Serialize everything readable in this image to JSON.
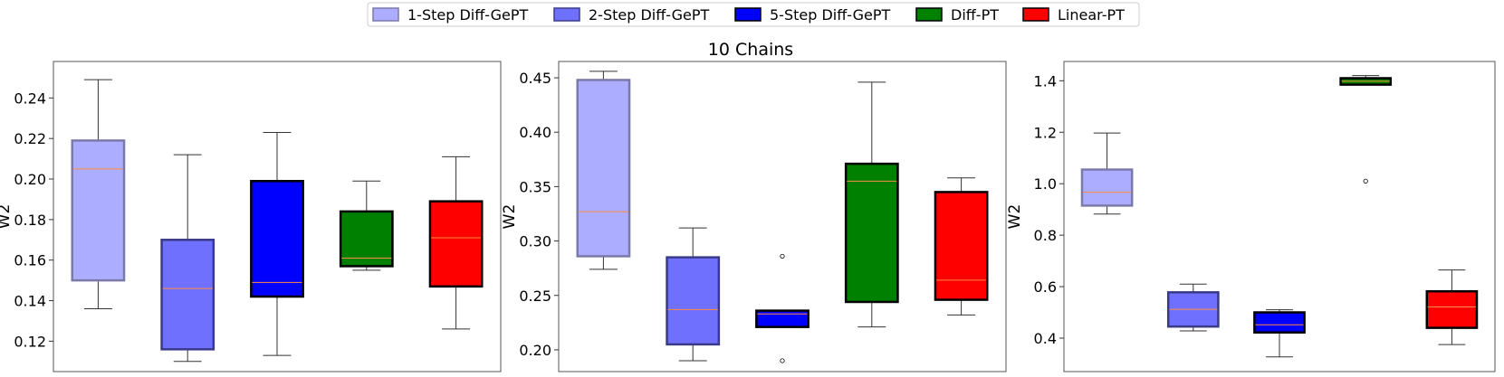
{
  "suptitle": "10 Chains",
  "legend": {
    "position": "top-center",
    "entries": [
      {
        "label": "1-Step Diff-GePT",
        "color": "#adadff",
        "edge": "#7a7aaa"
      },
      {
        "label": "2-Step Diff-GePT",
        "color": "#7070ff",
        "edge": "#3a3a88"
      },
      {
        "label": "5-Step Diff-GePT",
        "color": "#0000ff",
        "edge": "#000000"
      },
      {
        "label": "Diff-PT",
        "color": "#008000",
        "edge": "#000000"
      },
      {
        "label": "Linear-PT",
        "color": "#ff0000",
        "edge": "#000000"
      }
    ]
  },
  "chart_data": [
    {
      "type": "box",
      "title": "",
      "xlabel": "",
      "ylabel": "W2",
      "ylim": [
        0.105,
        0.258
      ],
      "yticks": [
        0.12,
        0.14,
        0.16,
        0.18,
        0.2,
        0.22,
        0.24
      ],
      "ytick_labels": [
        "0.12",
        "0.14",
        "0.16",
        "0.18",
        "0.20",
        "0.22",
        "0.24"
      ],
      "grid": false,
      "boxes": [
        {
          "series": "1-Step Diff-GePT",
          "whislo": 0.136,
          "q1": 0.15,
          "med": 0.205,
          "q3": 0.219,
          "whishi": 0.249,
          "fliers": []
        },
        {
          "series": "2-Step Diff-GePT",
          "whislo": 0.11,
          "q1": 0.116,
          "med": 0.146,
          "q3": 0.17,
          "whishi": 0.212,
          "fliers": []
        },
        {
          "series": "5-Step Diff-GePT",
          "whislo": 0.113,
          "q1": 0.142,
          "med": 0.149,
          "q3": 0.199,
          "whishi": 0.223,
          "fliers": []
        },
        {
          "series": "Diff-PT",
          "whislo": 0.155,
          "q1": 0.157,
          "med": 0.161,
          "q3": 0.184,
          "whishi": 0.199,
          "fliers": []
        },
        {
          "series": "Linear-PT",
          "whislo": 0.126,
          "q1": 0.147,
          "med": 0.171,
          "q3": 0.189,
          "whishi": 0.211,
          "fliers": []
        }
      ]
    },
    {
      "type": "box",
      "title": "",
      "xlabel": "",
      "ylabel": "W2",
      "ylim": [
        0.18,
        0.465
      ],
      "yticks": [
        0.2,
        0.25,
        0.3,
        0.35,
        0.4,
        0.45
      ],
      "ytick_labels": [
        "0.20",
        "0.25",
        "0.30",
        "0.35",
        "0.40",
        "0.45"
      ],
      "grid": false,
      "boxes": [
        {
          "series": "1-Step Diff-GePT",
          "whislo": 0.274,
          "q1": 0.286,
          "med": 0.327,
          "q3": 0.448,
          "whishi": 0.456,
          "fliers": []
        },
        {
          "series": "2-Step Diff-GePT",
          "whislo": 0.19,
          "q1": 0.205,
          "med": 0.237,
          "q3": 0.285,
          "whishi": 0.312,
          "fliers": []
        },
        {
          "series": "5-Step Diff-GePT",
          "whislo": 0.221,
          "q1": 0.221,
          "med": 0.233,
          "q3": 0.236,
          "whishi": 0.236,
          "fliers": [
            0.286,
            0.19
          ]
        },
        {
          "series": "Diff-PT",
          "whislo": 0.221,
          "q1": 0.244,
          "med": 0.355,
          "q3": 0.371,
          "whishi": 0.446,
          "fliers": []
        },
        {
          "series": "Linear-PT",
          "whislo": 0.232,
          "q1": 0.246,
          "med": 0.264,
          "q3": 0.345,
          "whishi": 0.358,
          "fliers": []
        }
      ]
    },
    {
      "type": "box",
      "title": "",
      "xlabel": "",
      "ylabel": "W2",
      "ylim": [
        0.27,
        1.475
      ],
      "yticks": [
        0.4,
        0.6,
        0.8,
        1.0,
        1.2,
        1.4
      ],
      "ytick_labels": [
        "0.4",
        "0.6",
        "0.8",
        "1.0",
        "1.2",
        "1.4"
      ],
      "grid": false,
      "boxes": [
        {
          "series": "1-Step Diff-GePT",
          "whislo": 0.882,
          "q1": 0.915,
          "med": 0.967,
          "q3": 1.055,
          "whishi": 1.197,
          "fliers": []
        },
        {
          "series": "2-Step Diff-GePT",
          "whislo": 0.428,
          "q1": 0.445,
          "med": 0.512,
          "q3": 0.578,
          "whishi": 0.61,
          "fliers": []
        },
        {
          "series": "5-Step Diff-GePT",
          "whislo": 0.327,
          "q1": 0.422,
          "med": 0.452,
          "q3": 0.5,
          "whishi": 0.51,
          "fliers": []
        },
        {
          "series": "Diff-PT",
          "whislo": 1.385,
          "q1": 1.385,
          "med": 1.398,
          "q3": 1.41,
          "whishi": 1.42,
          "fliers": [
            1.01
          ]
        },
        {
          "series": "Linear-PT",
          "whislo": 0.375,
          "q1": 0.44,
          "med": 0.521,
          "q3": 0.582,
          "whishi": 0.665,
          "fliers": []
        }
      ]
    }
  ]
}
